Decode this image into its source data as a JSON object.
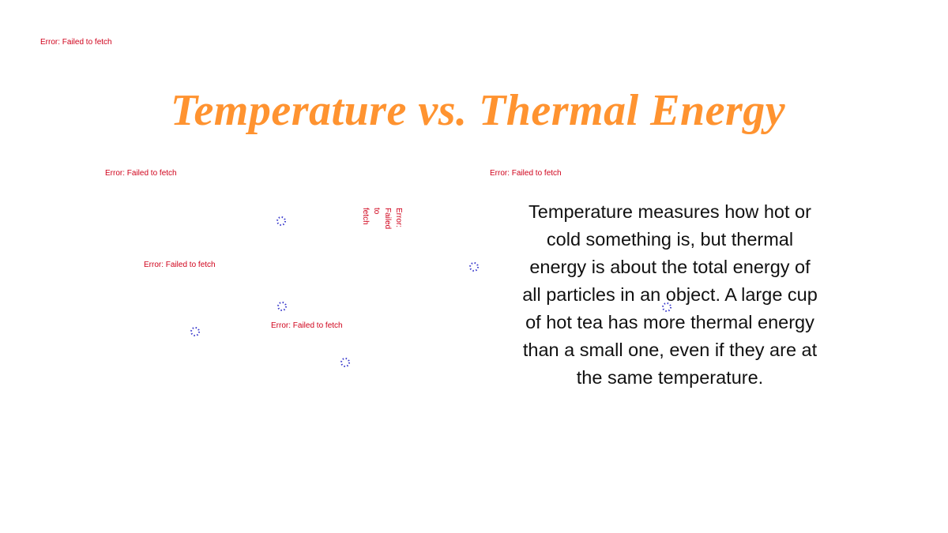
{
  "errors": [
    "Error: Failed to fetch",
    "Error: Failed to fetch",
    "Error: Failed to fetch",
    "Error: Failed to fetch",
    "Error: Failed to fetch",
    "Error: Failed to fetch"
  ],
  "title": "Temperature vs. Thermal Energy",
  "body": "Temperature measures how hot or cold something is, but thermal energy is about the total energy of all particles in an object. A large cup of hot tea has more thermal energy than a small one, even if they are at the same temperature."
}
